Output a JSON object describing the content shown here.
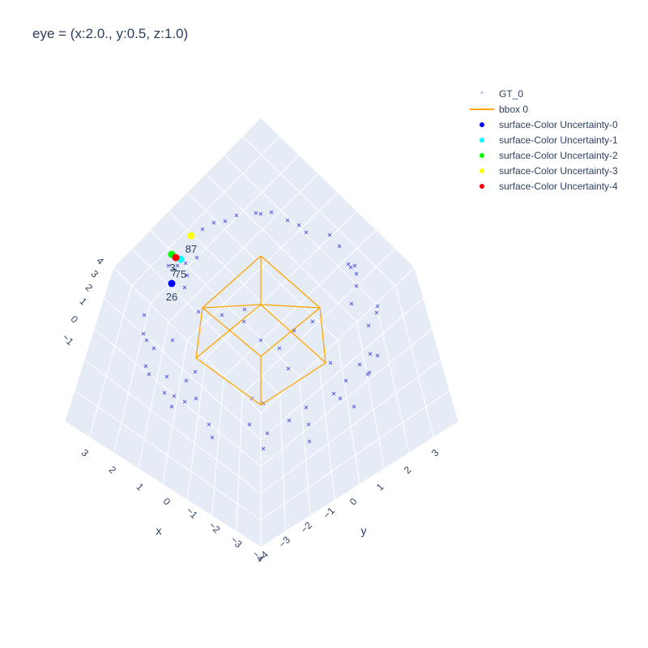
{
  "title": "eye = (x:2.0., y:0.5, z:1.0)",
  "chart_data": {
    "type": "scatter3d",
    "camera_eye": {
      "x": 2.0,
      "y": 0.5,
      "z": 1.0
    },
    "axes": {
      "x": {
        "title": "x",
        "ticks": [
          "3",
          "2",
          "1",
          "0",
          "−1",
          "−2",
          "−3",
          "−4"
        ]
      },
      "y": {
        "title": "y",
        "ticks": [
          "−4",
          "−3",
          "−2",
          "−1",
          "0",
          "1",
          "2",
          "3"
        ]
      },
      "z": {
        "title": "",
        "ticks": [
          "4",
          "3",
          "2",
          "1",
          "0",
          "−1"
        ]
      }
    },
    "colors": {
      "scene_bg": "#e5ecf6",
      "grid": "#ffffff",
      "bbox": "#ffa500",
      "gt": "#5a5ae6"
    },
    "legend": {
      "position": "top-right",
      "entries": [
        {
          "name": "GT_0",
          "symbol": "x",
          "color": "#7b7be8"
        },
        {
          "name": "bbox 0",
          "symbol": "line",
          "color": "#ffa500"
        },
        {
          "name": "surface-Color Uncertainty-0",
          "symbol": "dot",
          "color": "#0000ff"
        },
        {
          "name": "surface-Color Uncertainty-1",
          "symbol": "dot",
          "color": "#00ffff"
        },
        {
          "name": "surface-Color Uncertainty-2",
          "symbol": "dot",
          "color": "#00ff00"
        },
        {
          "name": "surface-Color Uncertainty-3",
          "symbol": "dot",
          "color": "#ffff00"
        },
        {
          "name": "surface-Color Uncertainty-4",
          "symbol": "dot",
          "color": "#ff0000"
        }
      ]
    },
    "uncertainty_points": [
      {
        "series": "surface-Color Uncertainty-0",
        "label": "26",
        "color": "#0000ff"
      },
      {
        "series": "surface-Color Uncertainty-1",
        "label": "75",
        "color": "#00ffff"
      },
      {
        "series": "surface-Color Uncertainty-2",
        "label": "3",
        "color": "#00ff00"
      },
      {
        "series": "surface-Color Uncertainty-3",
        "label": "87",
        "color": "#ffff00"
      },
      {
        "series": "surface-Color Uncertainty-4",
        "label": "7",
        "color": "#ff0000"
      }
    ]
  }
}
